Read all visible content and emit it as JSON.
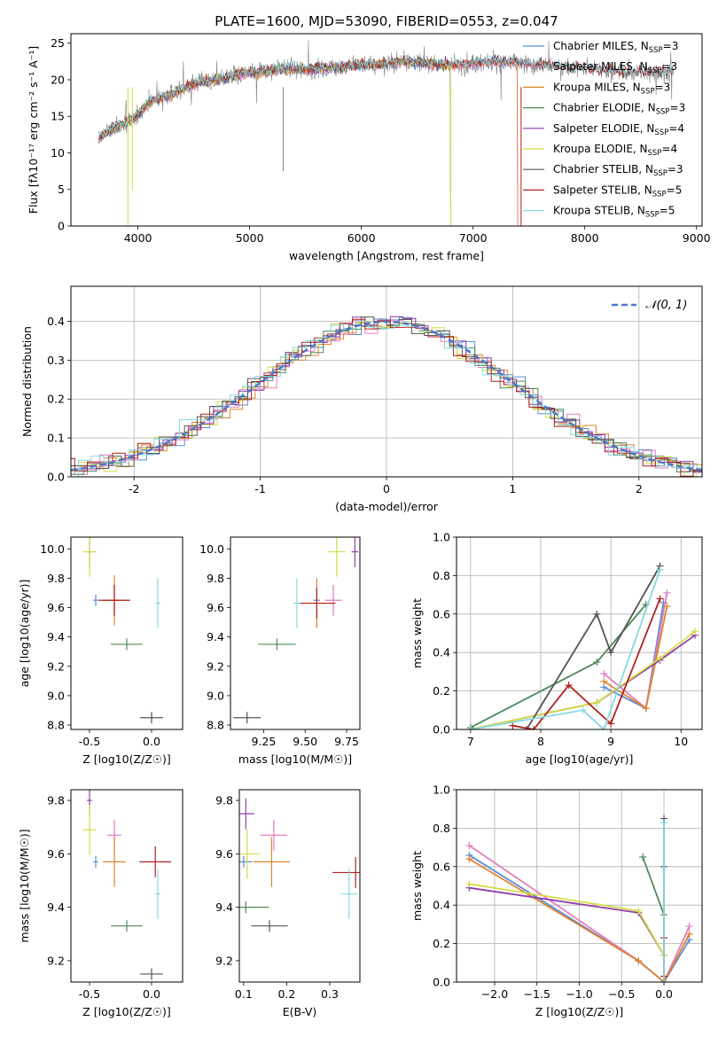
{
  "title": "PLATE=1600, MJD=53090, FIBERID=0553, z=0.047",
  "colors": {
    "Chabrier MILES": "#5b8dd6",
    "Salpeter MILES": "#e27ec0",
    "Kroupa MILES": "#e0822c",
    "Chabrier ELODIE": "#4f8a5b",
    "Salpeter ELODIE": "#8e3fa8",
    "Kroupa ELODIE": "#d6db48",
    "Chabrier STELIB": "#555555",
    "Salpeter STELIB": "#b11f1f",
    "Kroupa STELIB": "#88d8e0"
  },
  "legend_text": [
    {
      "pre": "Chabrier MILES, N",
      "sub": "SSP",
      "post": "=3"
    },
    {
      "pre": "Salpeter MILES, N",
      "sub": "SSP",
      "post": "=3"
    },
    {
      "pre": "Kroupa MILES, N",
      "sub": "SSP",
      "post": "=3"
    },
    {
      "pre": "Chabrier ELODIE, N",
      "sub": "SSP",
      "post": "=3"
    },
    {
      "pre": "Salpeter ELODIE, N",
      "sub": "SSP",
      "post": "=4"
    },
    {
      "pre": "Kroupa ELODIE, N",
      "sub": "SSP",
      "post": "=4"
    },
    {
      "pre": "Chabrier STELIB, N",
      "sub": "SSP",
      "post": "=3"
    },
    {
      "pre": "Salpeter STELIB, N",
      "sub": "SSP",
      "post": "=5"
    },
    {
      "pre": "Kroupa STELIB, N",
      "sub": "SSP",
      "post": "=5"
    }
  ],
  "chart_data": [
    {
      "type": "line",
      "panel": "spectrum",
      "xlabel": "wavelength [Angstrom, rest frame]",
      "ylabel": "Flux [fλ10⁻¹⁷ erg cm⁻² s⁻¹ A⁻¹]",
      "xlim": [
        3400,
        9050
      ],
      "ylim": [
        0,
        26.3
      ],
      "xticks": [
        4000,
        5000,
        6000,
        7000,
        8000,
        9000
      ],
      "yticks": [
        0,
        5,
        10,
        15,
        20,
        25
      ],
      "observed_continuum": {
        "x": [
          3650,
          3800,
          3950,
          4100,
          4300,
          4500,
          4700,
          5000,
          5300,
          5600,
          6000,
          6400,
          6800,
          7200,
          7600,
          8000,
          8400,
          8800
        ],
        "y": [
          12,
          13.5,
          14.5,
          17,
          18,
          19.5,
          20,
          21,
          21.5,
          21.5,
          22,
          22.5,
          22,
          22.5,
          22,
          21.5,
          21,
          21
        ]
      },
      "series": [
        {
          "name": "Chabrier MILES",
          "x_range": [
            3650,
            7400
          ]
        },
        {
          "name": "Salpeter MILES",
          "x_range": [
            3650,
            7400
          ]
        },
        {
          "name": "Kroupa MILES",
          "x_range": [
            3650,
            7400
          ]
        },
        {
          "name": "Chabrier ELODIE",
          "x_range": [
            3650,
            6800
          ]
        },
        {
          "name": "Salpeter ELODIE",
          "x_range": [
            3650,
            6800
          ]
        },
        {
          "name": "Kroupa ELODIE",
          "x_range": [
            3650,
            6800
          ]
        },
        {
          "name": "Chabrier STELIB",
          "x_range": [
            3650,
            8800
          ]
        },
        {
          "name": "Salpeter STELIB",
          "x_range": [
            3650,
            8800
          ]
        },
        {
          "name": "Kroupa STELIB",
          "x_range": [
            3650,
            8800
          ]
        }
      ]
    },
    {
      "type": "histogram",
      "panel": "residuals",
      "xlabel": "(data-model)/error",
      "ylabel": "Normed distribution",
      "xlim": [
        -2.5,
        2.5
      ],
      "ylim": [
        0,
        0.49
      ],
      "xticks": [
        -2,
        -1,
        0,
        1,
        2
      ],
      "yticks": [
        0.0,
        0.1,
        0.2,
        0.3,
        0.4
      ],
      "bin_width": 0.1,
      "reference": {
        "name": "N(0,1)",
        "label": "𝒩(0, 1)",
        "mu": 0,
        "sigma": 1
      }
    },
    {
      "type": "scatter",
      "panel": "age_vs_Z",
      "xlabel": "Z [log10(Z/Z☉)]",
      "ylabel": "age [log10(age/yr)]",
      "xlim": [
        -0.65,
        0.25
      ],
      "ylim": [
        8.77,
        10.08
      ],
      "xticks": [
        -0.5,
        0.0
      ],
      "yticks": [
        8.8,
        9.0,
        9.2,
        9.4,
        9.6,
        9.8,
        10.0
      ],
      "points": [
        {
          "series": "Chabrier MILES",
          "x": -0.45,
          "y": 9.65
        },
        {
          "series": "Salpeter MILES",
          "x": -0.3,
          "y": 9.65
        },
        {
          "series": "Kroupa MILES",
          "x": -0.3,
          "y": 9.65
        },
        {
          "series": "Chabrier ELODIE",
          "x": -0.2,
          "y": 9.35
        },
        {
          "series": "Salpeter ELODIE",
          "x": -0.5,
          "y": 9.98
        },
        {
          "series": "Kroupa ELODIE",
          "x": -0.5,
          "y": 9.98
        },
        {
          "series": "Chabrier STELIB",
          "x": 0.0,
          "y": 8.85
        },
        {
          "series": "Salpeter STELIB",
          "x": -0.3,
          "y": 9.65
        },
        {
          "series": "Kroupa STELIB",
          "x": 0.05,
          "y": 9.63
        }
      ]
    },
    {
      "type": "scatter",
      "panel": "age_vs_mass",
      "xlabel": "mass [log10(M/M☉)]",
      "ylabel": "",
      "xlim": [
        9.05,
        9.83
      ],
      "ylim": [
        8.77,
        10.08
      ],
      "xticks": [
        9.25,
        9.5,
        9.75
      ],
      "yticks": [
        8.8,
        9.0,
        9.2,
        9.4,
        9.6,
        9.8,
        10.0
      ],
      "points": [
        {
          "series": "Chabrier MILES",
          "x": 9.57,
          "y": 9.65
        },
        {
          "series": "Salpeter MILES",
          "x": 9.67,
          "y": 9.65
        },
        {
          "series": "Kroupa MILES",
          "x": 9.57,
          "y": 9.63
        },
        {
          "series": "Chabrier ELODIE",
          "x": 9.33,
          "y": 9.35
        },
        {
          "series": "Salpeter ELODIE",
          "x": 9.8,
          "y": 9.98
        },
        {
          "series": "Kroupa ELODIE",
          "x": 9.69,
          "y": 9.98
        },
        {
          "series": "Chabrier STELIB",
          "x": 9.15,
          "y": 8.85
        },
        {
          "series": "Salpeter STELIB",
          "x": 9.57,
          "y": 9.63
        },
        {
          "series": "Kroupa STELIB",
          "x": 9.45,
          "y": 9.63
        }
      ]
    },
    {
      "type": "line",
      "panel": "mass_weight_vs_age",
      "xlabel": "age [log10(age/yr)]",
      "ylabel": "mass weight",
      "xlim": [
        6.8,
        10.3
      ],
      "ylim": [
        0,
        1.0
      ],
      "xticks": [
        7,
        8,
        9,
        10
      ],
      "yticks": [
        0.0,
        0.2,
        0.4,
        0.6,
        0.8,
        1.0
      ],
      "series": [
        {
          "name": "Chabrier MILES",
          "x": [
            8.9,
            9.5,
            9.75
          ],
          "y": [
            0.22,
            0.11,
            0.66
          ]
        },
        {
          "name": "Salpeter MILES",
          "x": [
            8.9,
            9.5,
            9.8
          ],
          "y": [
            0.29,
            0.11,
            0.71
          ]
        },
        {
          "name": "Kroupa MILES",
          "x": [
            8.9,
            9.5,
            9.8
          ],
          "y": [
            0.25,
            0.11,
            0.64
          ]
        },
        {
          "name": "Chabrier ELODIE",
          "x": [
            7.0,
            8.8,
            9.5
          ],
          "y": [
            0.01,
            0.35,
            0.65
          ]
        },
        {
          "name": "Salpeter ELODIE",
          "x": [
            7.0,
            8.8,
            9.7,
            10.2
          ],
          "y": [
            0.0,
            0.14,
            0.36,
            0.49
          ]
        },
        {
          "name": "Kroupa ELODIE",
          "x": [
            7.0,
            8.8,
            9.7,
            10.2
          ],
          "y": [
            0.0,
            0.14,
            0.37,
            0.51
          ]
        },
        {
          "name": "Chabrier STELIB",
          "x": [
            7.8,
            8.8,
            9.0,
            9.7
          ],
          "y": [
            0.0,
            0.6,
            0.4,
            0.85
          ]
        },
        {
          "name": "Salpeter STELIB",
          "x": [
            7.6,
            7.9,
            8.4,
            9.0,
            9.7
          ],
          "y": [
            0.02,
            0.0,
            0.23,
            0.03,
            0.68
          ]
        },
        {
          "name": "Kroupa STELIB",
          "x": [
            7.0,
            8.6,
            8.9,
            9.7
          ],
          "y": [
            0.0,
            0.1,
            0.0,
            0.83
          ]
        }
      ]
    },
    {
      "type": "scatter",
      "panel": "mass_vs_Z",
      "xlabel": "Z [log10(Z/Z☉)]",
      "ylabel": "mass [log10(M/M☉)]",
      "xlim": [
        -0.65,
        0.25
      ],
      "ylim": [
        9.12,
        9.84
      ],
      "xticks": [
        -0.5,
        0.0
      ],
      "yticks": [
        9.2,
        9.4,
        9.6,
        9.8
      ],
      "points": [
        {
          "series": "Chabrier MILES",
          "x": -0.45,
          "y": 9.57
        },
        {
          "series": "Salpeter MILES",
          "x": -0.3,
          "y": 9.67
        },
        {
          "series": "Kroupa MILES",
          "x": -0.3,
          "y": 9.57
        },
        {
          "series": "Chabrier ELODIE",
          "x": -0.2,
          "y": 9.33
        },
        {
          "series": "Salpeter ELODIE",
          "x": -0.5,
          "y": 9.8
        },
        {
          "series": "Kroupa ELODIE",
          "x": -0.5,
          "y": 9.69
        },
        {
          "series": "Chabrier STELIB",
          "x": 0.0,
          "y": 9.15
        },
        {
          "series": "Salpeter STELIB",
          "x": 0.03,
          "y": 9.57
        },
        {
          "series": "Kroupa STELIB",
          "x": 0.05,
          "y": 9.45
        }
      ]
    },
    {
      "type": "scatter",
      "panel": "mass_vs_EBV",
      "xlabel": "E(B-V)",
      "ylabel": "",
      "xlim": [
        0.09,
        0.37
      ],
      "ylim": [
        9.12,
        9.84
      ],
      "xticks": [
        0.1,
        0.2,
        0.3
      ],
      "yticks": [
        9.2,
        9.4,
        9.6,
        9.8
      ],
      "points": [
        {
          "series": "Chabrier MILES",
          "x": 0.1,
          "y": 9.57
        },
        {
          "series": "Salpeter MILES",
          "x": 0.17,
          "y": 9.67
        },
        {
          "series": "Kroupa MILES",
          "x": 0.165,
          "y": 9.57
        },
        {
          "series": "Chabrier ELODIE",
          "x": 0.105,
          "y": 9.4
        },
        {
          "series": "Salpeter ELODIE",
          "x": 0.105,
          "y": 9.75
        },
        {
          "series": "Kroupa ELODIE",
          "x": 0.108,
          "y": 9.6
        },
        {
          "series": "Chabrier STELIB",
          "x": 0.16,
          "y": 9.33
        },
        {
          "series": "Salpeter STELIB",
          "x": 0.36,
          "y": 9.53
        },
        {
          "series": "Kroupa STELIB",
          "x": 0.345,
          "y": 9.45
        }
      ]
    },
    {
      "type": "line",
      "panel": "mass_weight_vs_Z",
      "xlabel": "Z [log10(Z/Z☉)]",
      "ylabel": "mass weight",
      "xlim": [
        -2.45,
        0.45
      ],
      "ylim": [
        0,
        1.0
      ],
      "xticks": [
        -2.0,
        -1.5,
        -1.0,
        -0.5,
        0.0
      ],
      "yticks": [
        0.0,
        0.2,
        0.4,
        0.6,
        0.8,
        1.0
      ],
      "series": [
        {
          "name": "Chabrier MILES",
          "x": [
            -2.3,
            -0.3,
            0.0,
            0.3
          ],
          "y": [
            0.66,
            0.11,
            0.0,
            0.22
          ]
        },
        {
          "name": "Salpeter MILES",
          "x": [
            -2.3,
            -0.3,
            0.0,
            0.3
          ],
          "y": [
            0.71,
            0.11,
            0.0,
            0.29
          ]
        },
        {
          "name": "Kroupa MILES",
          "x": [
            -2.3,
            -0.3,
            0.0,
            0.3
          ],
          "y": [
            0.64,
            0.11,
            0.0,
            0.25
          ]
        },
        {
          "name": "Chabrier ELODIE",
          "x": [
            -0.25,
            0.0,
            0.0
          ],
          "y": [
            0.65,
            0.35,
            0.0
          ]
        },
        {
          "name": "Salpeter ELODIE",
          "x": [
            -2.3,
            -0.3,
            0.0
          ],
          "y": [
            0.49,
            0.36,
            0.14
          ]
        },
        {
          "name": "Kroupa ELODIE",
          "x": [
            -2.3,
            -0.3,
            0.0
          ],
          "y": [
            0.51,
            0.37,
            0.14
          ]
        },
        {
          "name": "Chabrier STELIB",
          "x": [
            0.0,
            0.0,
            0.0
          ],
          "y": [
            0.6,
            0.85,
            0.0
          ]
        },
        {
          "name": "Salpeter STELIB",
          "x": [
            0.0,
            0.0
          ],
          "y": [
            0.03,
            0.23
          ]
        },
        {
          "name": "Kroupa STELIB",
          "x": [
            0.0,
            0.0
          ],
          "y": [
            0.83,
            0.0
          ]
        }
      ]
    }
  ]
}
